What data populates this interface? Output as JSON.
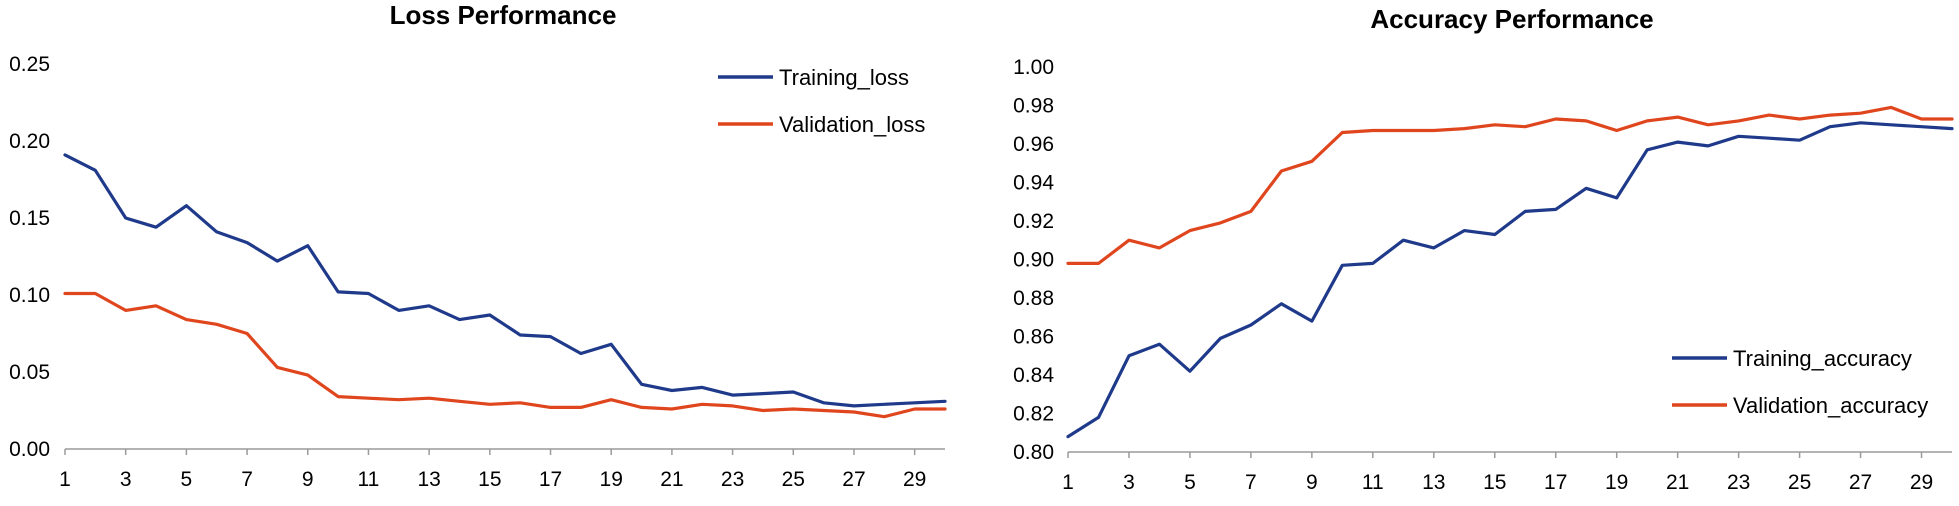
{
  "chart_data": [
    {
      "type": "line",
      "title": "Loss Performance",
      "xlabel": "",
      "ylabel": "",
      "ylim": [
        0,
        0.25
      ],
      "yticks": [
        "0.00",
        "0.05",
        "0.10",
        "0.15",
        "0.20",
        "0.25"
      ],
      "x": [
        1,
        2,
        3,
        4,
        5,
        6,
        7,
        8,
        9,
        10,
        11,
        12,
        13,
        14,
        15,
        16,
        17,
        18,
        19,
        20,
        21,
        22,
        23,
        24,
        25,
        26,
        27,
        28,
        29,
        30
      ],
      "xtick_labels": [
        "1",
        "3",
        "5",
        "7",
        "9",
        "11",
        "13",
        "15",
        "17",
        "19",
        "21",
        "23",
        "25",
        "27",
        "29"
      ],
      "legend_position": "top-right",
      "series": [
        {
          "name": "Training_loss",
          "color": "#1f3a8a",
          "values": [
            0.191,
            0.181,
            0.15,
            0.144,
            0.158,
            0.141,
            0.134,
            0.122,
            0.132,
            0.102,
            0.101,
            0.09,
            0.093,
            0.084,
            0.087,
            0.074,
            0.073,
            0.062,
            0.068,
            0.042,
            0.038,
            0.04,
            0.035,
            0.036,
            0.037,
            0.03,
            0.028,
            0.029,
            0.03,
            0.031
          ]
        },
        {
          "name": "Validation_loss",
          "color": "#e0461e",
          "values": [
            0.101,
            0.101,
            0.09,
            0.093,
            0.084,
            0.081,
            0.075,
            0.053,
            0.048,
            0.034,
            0.033,
            0.032,
            0.033,
            0.031,
            0.029,
            0.03,
            0.027,
            0.027,
            0.032,
            0.027,
            0.026,
            0.029,
            0.028,
            0.025,
            0.026,
            0.025,
            0.024,
            0.021,
            0.026,
            0.026
          ]
        }
      ]
    },
    {
      "type": "line",
      "title": "Accuracy Performance",
      "xlabel": "",
      "ylabel": "",
      "ylim": [
        0.8,
        1.0
      ],
      "yticks": [
        "0.80",
        "0.82",
        "0.84",
        "0.86",
        "0.88",
        "0.90",
        "0.92",
        "0.94",
        "0.96",
        "0.98",
        "1.00"
      ],
      "x": [
        1,
        2,
        3,
        4,
        5,
        6,
        7,
        8,
        9,
        10,
        11,
        12,
        13,
        14,
        15,
        16,
        17,
        18,
        19,
        20,
        21,
        22,
        23,
        24,
        25,
        26,
        27,
        28,
        29,
        30
      ],
      "xtick_labels": [
        "1",
        "3",
        "5",
        "7",
        "9",
        "11",
        "13",
        "15",
        "17",
        "19",
        "21",
        "23",
        "25",
        "27",
        "29"
      ],
      "legend_position": "bottom-right",
      "series": [
        {
          "name": "Training_accuracy",
          "color": "#1f3a8a",
          "values": [
            0.808,
            0.818,
            0.85,
            0.856,
            0.842,
            0.859,
            0.866,
            0.877,
            0.868,
            0.897,
            0.898,
            0.91,
            0.906,
            0.915,
            0.913,
            0.925,
            0.926,
            0.937,
            0.932,
            0.957,
            0.961,
            0.959,
            0.964,
            0.963,
            0.962,
            0.969,
            0.971,
            0.97,
            0.969,
            0.968
          ]
        },
        {
          "name": "Validation_accuracy",
          "color": "#e0461e",
          "values": [
            0.898,
            0.898,
            0.91,
            0.906,
            0.915,
            0.919,
            0.925,
            0.946,
            0.951,
            0.966,
            0.967,
            0.967,
            0.967,
            0.968,
            0.97,
            0.969,
            0.973,
            0.972,
            0.967,
            0.972,
            0.974,
            0.97,
            0.972,
            0.975,
            0.973,
            0.975,
            0.976,
            0.979,
            0.973,
            0.973
          ]
        }
      ]
    }
  ]
}
